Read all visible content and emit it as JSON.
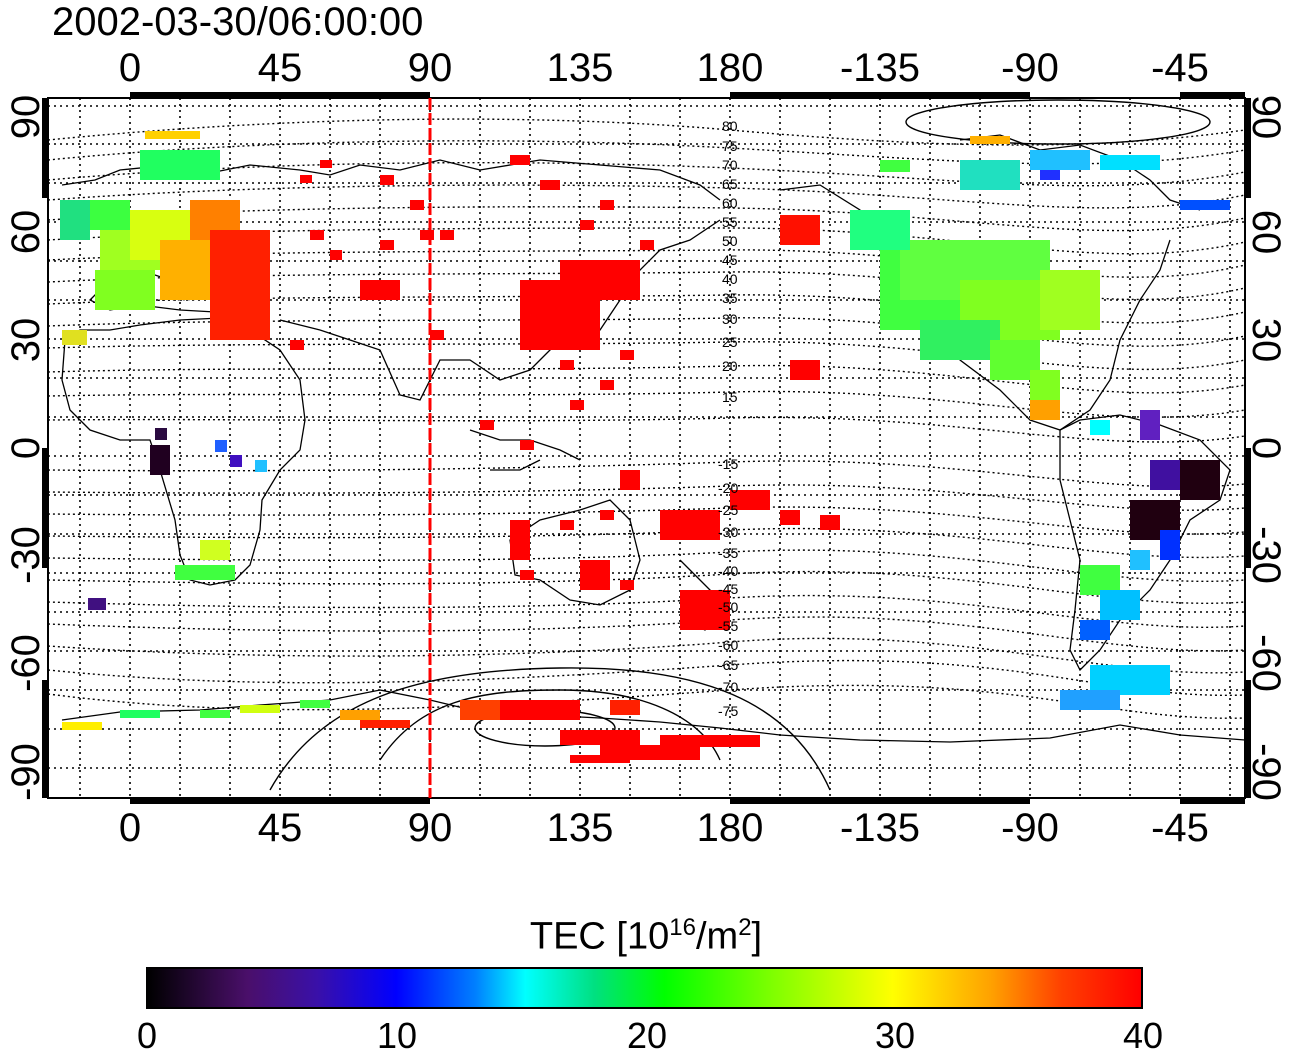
{
  "title": "2002-03-30/06:00:00",
  "map": {
    "lon_ticks": [
      "0",
      "45",
      "90",
      "135",
      "180",
      "-135",
      "-90",
      "-45"
    ],
    "lat_ticks": [
      "90",
      "60",
      "30",
      "0",
      "-30",
      "-60",
      "-90"
    ],
    "contour_labels": [
      "80",
      "75",
      "70",
      "65",
      "60",
      "55",
      "50",
      "45",
      "40",
      "35",
      "30",
      "25",
      "20",
      "15",
      "-15",
      "-20",
      "-25",
      "-30",
      "-35",
      "-40",
      "-45",
      "-50",
      "-55",
      "-60",
      "-65",
      "-70",
      "-75"
    ],
    "marker_longitude": 90,
    "marker_color": "#ff0000"
  },
  "colorbar": {
    "title_base": "TEC  [10",
    "title_exp1": "16",
    "title_mid": "/m",
    "title_exp2": "2",
    "title_end": "]",
    "ticks": [
      "0",
      "10",
      "20",
      "30",
      "40"
    ],
    "range": [
      0,
      40
    ]
  },
  "colors": {
    "low": "#000000",
    "mid": "#00ff00",
    "high": "#ff0000"
  }
}
